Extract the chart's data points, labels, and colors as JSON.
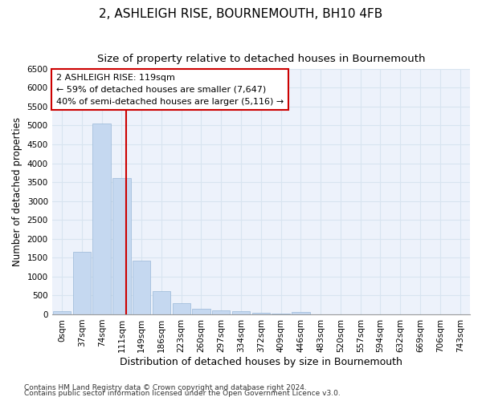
{
  "title": "2, ASHLEIGH RISE, BOURNEMOUTH, BH10 4FB",
  "subtitle": "Size of property relative to detached houses in Bournemouth",
  "xlabel": "Distribution of detached houses by size in Bournemouth",
  "ylabel": "Number of detached properties",
  "footnote1": "Contains HM Land Registry data © Crown copyright and database right 2024.",
  "footnote2": "Contains public sector information licensed under the Open Government Licence v3.0.",
  "annotation_line1": "2 ASHLEIGH RISE: 119sqm",
  "annotation_line2": "← 59% of detached houses are smaller (7,647)",
  "annotation_line3": "40% of semi-detached houses are larger (5,116) →",
  "bar_color": "#c5d8f0",
  "bar_edge_color": "#9ab8d8",
  "grid_color": "#d8e4f0",
  "bg_color": "#edf2fb",
  "red_line_color": "#cc0000",
  "annotation_box_facecolor": "#ffffff",
  "annotation_box_edge": "#cc0000",
  "categories": [
    "0sqm",
    "37sqm",
    "74sqm",
    "111sqm",
    "149sqm",
    "186sqm",
    "223sqm",
    "260sqm",
    "297sqm",
    "334sqm",
    "372sqm",
    "409sqm",
    "446sqm",
    "483sqm",
    "520sqm",
    "557sqm",
    "594sqm",
    "632sqm",
    "669sqm",
    "706sqm",
    "743sqm"
  ],
  "values": [
    75,
    1650,
    5050,
    3600,
    1420,
    620,
    295,
    155,
    110,
    80,
    50,
    30,
    70,
    0,
    0,
    0,
    0,
    0,
    0,
    0,
    0
  ],
  "ylim": [
    0,
    6500
  ],
  "yticks": [
    0,
    500,
    1000,
    1500,
    2000,
    2500,
    3000,
    3500,
    4000,
    4500,
    5000,
    5500,
    6000,
    6500
  ],
  "red_line_x": 3.22,
  "title_fontsize": 11,
  "subtitle_fontsize": 9.5,
  "xlabel_fontsize": 9,
  "ylabel_fontsize": 8.5,
  "tick_fontsize": 7.5,
  "annotation_fontsize": 8,
  "footnote_fontsize": 6.5
}
